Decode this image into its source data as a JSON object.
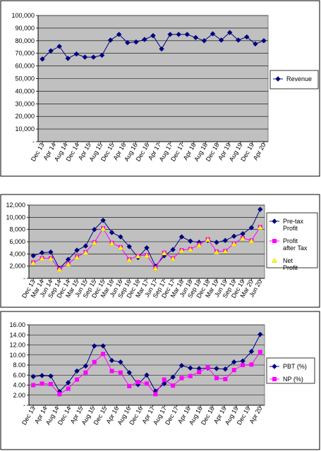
{
  "chart_data": [
    {
      "type": "line",
      "title": "",
      "xlabel": "",
      "ylabel": "",
      "ylim": [
        0,
        100000
      ],
      "yticks": [
        0,
        10000,
        20000,
        30000,
        40000,
        50000,
        60000,
        70000,
        80000,
        90000,
        100000
      ],
      "ytick_labels": [
        "-",
        "10,000",
        "20,000",
        "30,000",
        "40,000",
        "50,000",
        "60,000",
        "70,000",
        "80,000",
        "90,000",
        "100,000"
      ],
      "grid": true,
      "legend_position": "right",
      "x_tick_labels": [
        "Dec 13",
        "Apr 14",
        "Aug 14",
        "Dec 14",
        "Apr 15",
        "Aug 15",
        "Dec 15",
        "Apr 16",
        "Aug 16",
        "Dec 16",
        "Apr 17",
        "Aug 17",
        "Dec 17",
        "Apr 18",
        "Aug 18",
        "Dec 18",
        "Apr 19",
        "Aug 19",
        "Dec 19",
        "Apr 20"
      ],
      "series": [
        {
          "name": "Revenue",
          "color": "#000080",
          "marker": "diamond",
          "values": [
            65500,
            72000,
            75500,
            66000,
            69500,
            67000,
            67000,
            68500,
            80500,
            85000,
            78500,
            79000,
            81000,
            84000,
            73500,
            85000,
            85000,
            85000,
            82500,
            80000,
            85500,
            80500,
            86500,
            80500,
            83000,
            77500,
            80000
          ]
        }
      ]
    },
    {
      "type": "line",
      "title": "",
      "xlabel": "",
      "ylabel": "",
      "ylim": [
        0,
        12000
      ],
      "yticks": [
        0,
        2000,
        4000,
        6000,
        8000,
        10000,
        12000
      ],
      "ytick_labels": [
        "-",
        "2,000",
        "4,000",
        "6,000",
        "8,000",
        "10,000",
        "12,000"
      ],
      "grid": true,
      "legend_position": "right",
      "x_tick_labels": [
        "Dec 13",
        "Mar 14",
        "Jun 14",
        "Sep 14",
        "Dec 14",
        "Mar 15",
        "Jun 15",
        "Sep 15",
        "Dec 15",
        "Mar 16",
        "Jun 16",
        "Sep 16",
        "Dec 16",
        "Mar 17",
        "Jun 17",
        "Sep 17",
        "Dec 17",
        "Mar 18",
        "Jun 18",
        "Sep 18",
        "Dec 18",
        "Mar 19",
        "Jun 19",
        "Sep 19",
        "Dec 19",
        "Mar 20",
        "Jun 20"
      ],
      "series": [
        {
          "name": "Pre-tax Profit",
          "color": "#000080",
          "marker": "diamond",
          "values": [
            3700,
            4200,
            4300,
            1600,
            3100,
            4600,
            5300,
            8000,
            9500,
            7500,
            6800,
            5200,
            3400,
            5000,
            2000,
            3700,
            4700,
            6800,
            6100,
            5900,
            6200,
            5900,
            6200,
            6900,
            7300,
            8300,
            11300
          ]
        },
        {
          "name": "Profit after Tax",
          "color": "#ff00ff",
          "marker": "square",
          "values": [
            2600,
            3300,
            3300,
            1500,
            2400,
            3500,
            4300,
            5900,
            8200,
            5800,
            5100,
            3100,
            3700,
            3800,
            1700,
            4200,
            3300,
            4600,
            4800,
            5500,
            6400,
            4400,
            4500,
            5700,
            6600,
            6200,
            8400
          ]
        },
        {
          "name": "Net Profit",
          "color": "#ffff00",
          "marker": "triangle",
          "values": [
            2500,
            3200,
            3200,
            1400,
            2300,
            3400,
            4200,
            5800,
            8100,
            5700,
            5000,
            3000,
            3600,
            3700,
            1600,
            4100,
            3200,
            4500,
            4700,
            5400,
            6300,
            4300,
            4400,
            5600,
            6500,
            6100,
            8300
          ]
        }
      ]
    },
    {
      "type": "line",
      "title": "",
      "xlabel": "",
      "ylabel": "",
      "ylim": [
        0,
        16
      ],
      "yticks": [
        0,
        2,
        4,
        6,
        8,
        10,
        12,
        14,
        16
      ],
      "ytick_labels": [
        "-",
        "2.00",
        "4.00",
        "6.00",
        "8.00",
        "10.00",
        "12.00",
        "14.00",
        "16.00"
      ],
      "grid": true,
      "legend_position": "right",
      "x_tick_labels": [
        "Dec 13",
        "Apr 14",
        "Aug 14",
        "Dec 14",
        "Apr 15",
        "Aug 15",
        "Dec 15",
        "Apr 16",
        "Aug 16",
        "Dec 16",
        "Apr 17",
        "Aug 17",
        "Dec 17",
        "Apr 18",
        "Aug 18",
        "Dec 18",
        "Apr 19",
        "Aug 19",
        "Dec 19",
        "Apr 20"
      ],
      "series": [
        {
          "name": "PBT (%)",
          "color": "#000080",
          "marker": "diamond",
          "values": [
            5.7,
            5.9,
            5.8,
            2.7,
            4.5,
            6.8,
            7.8,
            11.8,
            11.8,
            8.9,
            8.6,
            6.5,
            4.1,
            6.0,
            2.8,
            4.3,
            5.6,
            7.9,
            7.4,
            7.3,
            7.4,
            7.3,
            7.2,
            8.6,
            8.8,
            10.7,
            14.1
          ]
        },
        {
          "name": "NP (%)",
          "color": "#ff00ff",
          "marker": "square",
          "values": [
            4.0,
            4.3,
            4.2,
            2.2,
            3.3,
            5.1,
            6.5,
            8.6,
            10.2,
            6.8,
            6.5,
            3.8,
            4.6,
            4.3,
            2.2,
            5.1,
            3.9,
            5.4,
            5.8,
            6.6,
            7.5,
            5.4,
            5.2,
            7.0,
            8.0,
            8.1,
            10.6
          ]
        }
      ]
    }
  ]
}
